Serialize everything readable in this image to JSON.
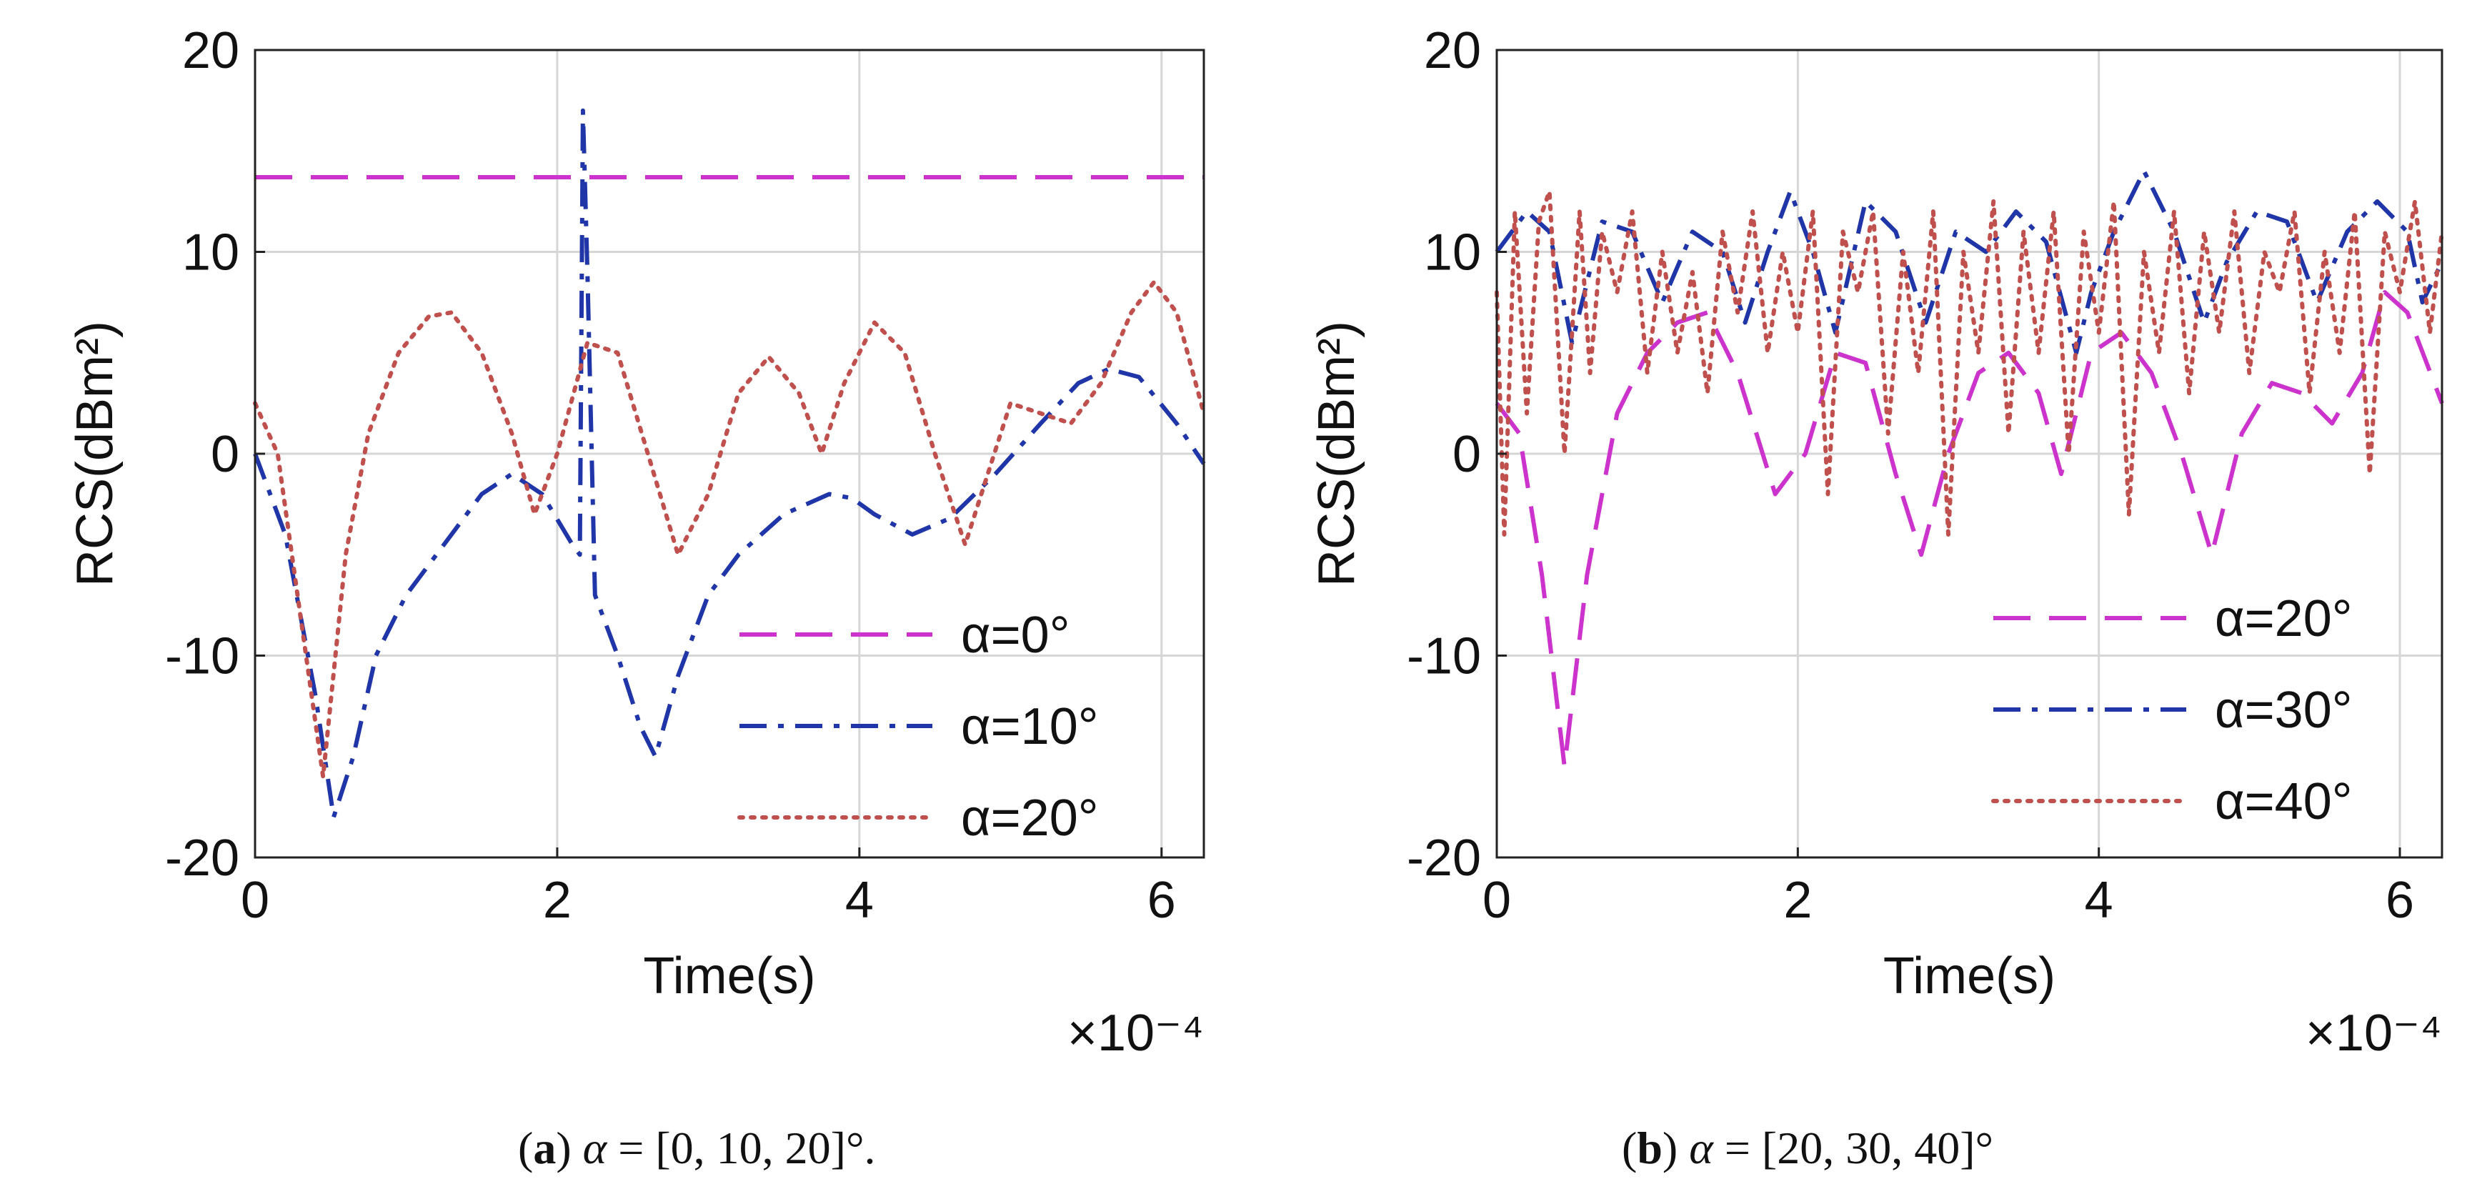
{
  "figure": {
    "captions": [
      {
        "letter": "a",
        "alpha_symbol": "α",
        "text": " = [0, 10, 20]°."
      },
      {
        "letter": "b",
        "alpha_symbol": "α",
        "text": " = [20, 30, 40]°"
      }
    ]
  },
  "chart_data": [
    {
      "type": "line",
      "panel": "a",
      "xlabel": "Time(s)",
      "ylabel": "RCS(dBm²)",
      "x_multiplier": "×10⁻⁴",
      "xlim": [
        0,
        6.28
      ],
      "ylim": [
        -20,
        20
      ],
      "xticks": [
        0,
        2,
        4,
        6
      ],
      "yticks": [
        -20,
        -10,
        0,
        10,
        20
      ],
      "grid": true,
      "legend_position": "bottom-right",
      "series": [
        {
          "name": "α=0°",
          "color": "#cc33cc",
          "style": "dashed",
          "x": [
            0,
            6.28
          ],
          "y": [
            13.7,
            13.7
          ]
        },
        {
          "name": "α=10°",
          "color": "#1f35a8",
          "style": "dashdot",
          "x": [
            0,
            0.2,
            0.4,
            0.52,
            0.65,
            0.8,
            1.0,
            1.2,
            1.5,
            1.7,
            1.9,
            2.1,
            2.15,
            2.17,
            2.2,
            2.25,
            2.4,
            2.55,
            2.65,
            2.8,
            3.0,
            3.2,
            3.5,
            3.8,
            3.95,
            4.1,
            4.35,
            4.6,
            4.9,
            5.2,
            5.45,
            5.65,
            5.85,
            6.1,
            6.28
          ],
          "y": [
            0,
            -4,
            -12,
            -18,
            -15,
            -10,
            -7,
            -5,
            -2,
            -1,
            -2,
            -4.5,
            -5,
            17,
            9,
            -7,
            -10,
            -13.5,
            -15,
            -11,
            -7,
            -5,
            -3,
            -2,
            -2.2,
            -3,
            -4,
            -3.2,
            -1,
            1.5,
            3.5,
            4.2,
            3.8,
            1.5,
            -0.5
          ]
        },
        {
          "name": "α=20°",
          "color": "#c0504d",
          "style": "dotted",
          "x": [
            0,
            0.15,
            0.3,
            0.45,
            0.6,
            0.75,
            0.95,
            1.15,
            1.3,
            1.5,
            1.7,
            1.85,
            2.0,
            2.2,
            2.4,
            2.6,
            2.8,
            3.0,
            3.2,
            3.4,
            3.6,
            3.75,
            3.9,
            4.1,
            4.3,
            4.5,
            4.7,
            4.85,
            5.0,
            5.2,
            5.4,
            5.6,
            5.8,
            5.95,
            6.1,
            6.28
          ],
          "y": [
            2.5,
            0,
            -8,
            -16,
            -5,
            1,
            5,
            6.8,
            7,
            5,
            1,
            -3,
            0,
            5.5,
            5,
            0,
            -5,
            -2,
            3,
            4.8,
            3,
            0,
            3.5,
            6.5,
            5,
            0,
            -4.5,
            -1,
            2.5,
            2,
            1.5,
            3.5,
            7,
            8.5,
            7,
            2
          ]
        }
      ]
    },
    {
      "type": "line",
      "panel": "b",
      "xlabel": "Time(s)",
      "ylabel": "RCS(dBm²)",
      "x_multiplier": "×10⁻⁴",
      "xlim": [
        0,
        6.28
      ],
      "ylim": [
        -20,
        20
      ],
      "xticks": [
        0,
        2,
        4,
        6
      ],
      "yticks": [
        -20,
        -10,
        0,
        10,
        20
      ],
      "grid": true,
      "legend_position": "bottom-right",
      "series": [
        {
          "name": "α=20°",
          "color": "#cc33cc",
          "style": "dashed",
          "x": [
            0,
            0.15,
            0.3,
            0.45,
            0.6,
            0.8,
            1.0,
            1.2,
            1.4,
            1.6,
            1.85,
            2.05,
            2.25,
            2.45,
            2.65,
            2.82,
            3.0,
            3.2,
            3.4,
            3.6,
            3.75,
            3.95,
            4.15,
            4.35,
            4.55,
            4.75,
            4.95,
            5.15,
            5.35,
            5.55,
            5.75,
            5.9,
            6.05,
            6.28
          ],
          "y": [
            2.5,
            1,
            -6,
            -15.5,
            -6,
            2,
            5,
            6.5,
            7,
            4,
            -2,
            0,
            5,
            4.5,
            -1,
            -5,
            0,
            4,
            5,
            3,
            -1,
            5,
            6,
            4,
            0,
            -5,
            1,
            3.5,
            3,
            1.5,
            4,
            8,
            7,
            2.5
          ]
        },
        {
          "name": "α=30°",
          "color": "#1f35a8",
          "style": "dashdot",
          "x": [
            0,
            0.2,
            0.35,
            0.5,
            0.7,
            0.9,
            1.1,
            1.3,
            1.5,
            1.65,
            1.8,
            1.95,
            2.1,
            2.25,
            2.45,
            2.65,
            2.85,
            3.05,
            3.25,
            3.45,
            3.65,
            3.85,
            3.95,
            4.1,
            4.3,
            4.5,
            4.7,
            4.85,
            5.05,
            5.25,
            5.45,
            5.65,
            5.85,
            6.05,
            6.15,
            6.28
          ],
          "y": [
            10,
            12,
            11,
            5.5,
            11.5,
            11,
            7.5,
            11,
            10,
            6.5,
            10,
            13,
            10,
            6,
            12.5,
            11,
            6.5,
            11,
            10,
            12,
            10.5,
            5,
            8,
            11,
            14,
            11,
            6.5,
            9.5,
            12,
            11.5,
            7.5,
            11,
            12.5,
            11,
            7.5,
            9.5
          ]
        },
        {
          "name": "α=40°",
          "color": "#c0504d",
          "style": "dotted",
          "x": [
            0,
            0.05,
            0.12,
            0.2,
            0.28,
            0.35,
            0.45,
            0.55,
            0.62,
            0.7,
            0.8,
            0.9,
            1.0,
            1.1,
            1.2,
            1.3,
            1.4,
            1.5,
            1.6,
            1.7,
            1.8,
            1.9,
            2.0,
            2.1,
            2.2,
            2.3,
            2.4,
            2.5,
            2.6,
            2.7,
            2.8,
            2.9,
            3.0,
            3.1,
            3.2,
            3.3,
            3.4,
            3.5,
            3.6,
            3.7,
            3.8,
            3.9,
            4.0,
            4.1,
            4.2,
            4.3,
            4.4,
            4.5,
            4.6,
            4.7,
            4.8,
            4.9,
            5.0,
            5.1,
            5.2,
            5.3,
            5.4,
            5.5,
            5.6,
            5.7,
            5.8,
            5.9,
            6.0,
            6.1,
            6.2,
            6.28
          ],
          "y": [
            8,
            -4,
            12,
            2,
            11.5,
            13,
            0,
            12,
            4,
            11,
            8,
            12,
            4,
            10,
            5,
            9,
            3,
            11,
            7,
            12,
            5,
            10,
            6,
            12,
            -2,
            11,
            8,
            12,
            1,
            10,
            4,
            12,
            -4,
            10,
            5,
            12.5,
            1,
            11,
            5,
            12,
            0,
            11,
            6,
            12.5,
            -3,
            10,
            5,
            12,
            3,
            11,
            6,
            12,
            4,
            10,
            8,
            12,
            3,
            10,
            5,
            12,
            -1,
            11,
            8,
            12.5,
            6,
            11
          ]
        }
      ]
    }
  ]
}
